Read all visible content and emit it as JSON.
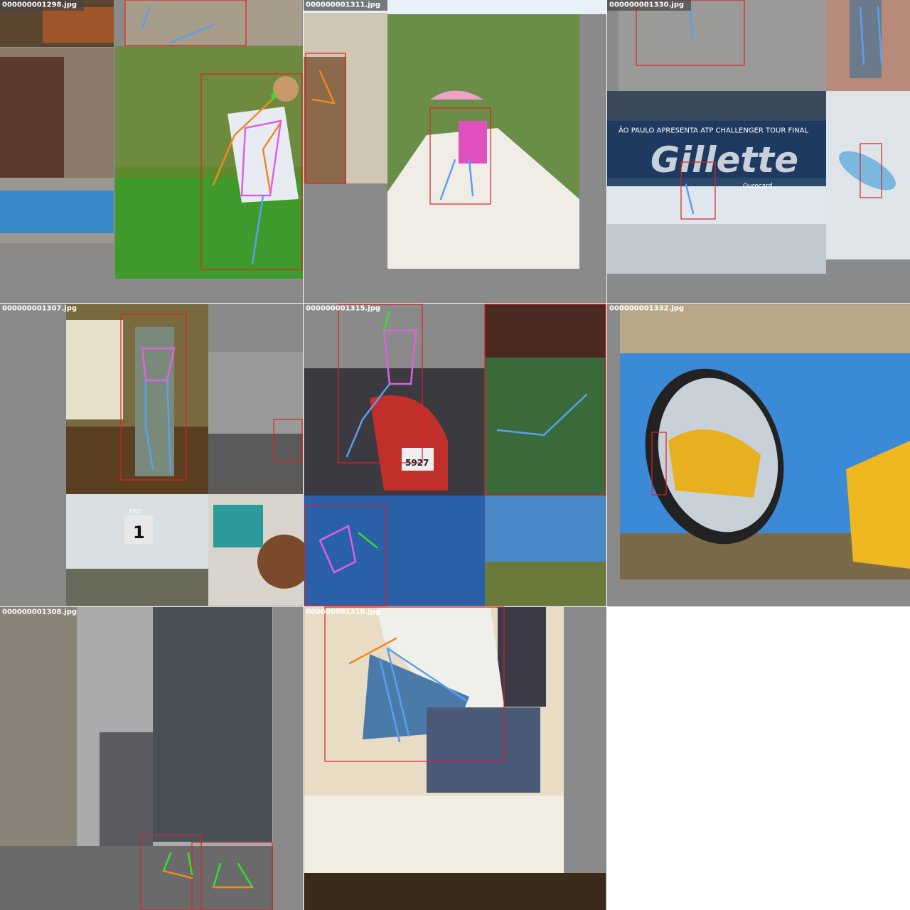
{
  "tiles": [
    {
      "label": "000000001298.jpg"
    },
    {
      "label": "000000001311.jpg"
    },
    {
      "label": "000000001330.jpg",
      "texts": [
        "ÃO PAULO APRESENTA ATP CHALLENGER TOUR FINAL",
        "Gillette",
        "Ourocard"
      ]
    },
    {
      "label": "000000001307.jpg",
      "texts": [
        "END",
        "1"
      ]
    },
    {
      "label": "000000001315.jpg",
      "texts": [
        "5927"
      ]
    },
    {
      "label": "000000001332.jpg"
    },
    {
      "label": "000000001308.jpg"
    },
    {
      "label": "000000001318.jpg"
    }
  ]
}
